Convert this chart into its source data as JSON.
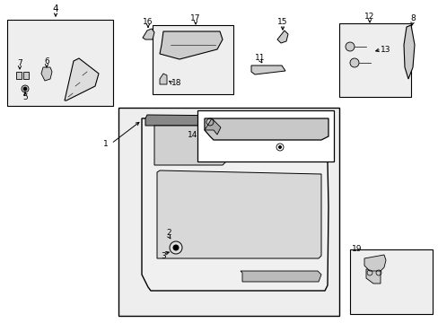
{
  "bg_color": "#ffffff",
  "fig_width": 4.89,
  "fig_height": 3.6,
  "dpi": 100,
  "label_fontsize": 7.5,
  "small_fontsize": 6.5
}
